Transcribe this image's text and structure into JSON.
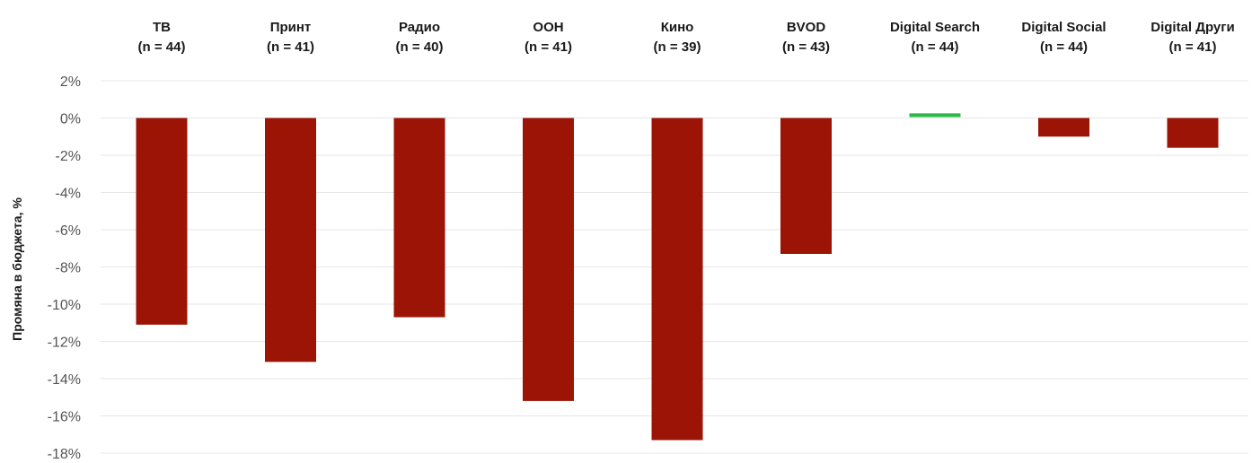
{
  "chart_data": {
    "type": "bar",
    "categories": [
      {
        "name": "ТВ",
        "n": "(n = 44)"
      },
      {
        "name": "Принт",
        "n": "(n = 41)"
      },
      {
        "name": "Радио",
        "n": "(n = 40)"
      },
      {
        "name": "OOH",
        "n": "(n = 41)"
      },
      {
        "name": "Кино",
        "n": "(n = 39)"
      },
      {
        "name": "BVOD",
        "n": "(n = 43)"
      },
      {
        "name": "Digital Search",
        "n": "(n = 44)"
      },
      {
        "name": "Digital Social",
        "n": "(n = 44)"
      },
      {
        "name": "Digital Други",
        "n": "(n = 41)"
      }
    ],
    "values": [
      -11.1,
      -13.1,
      -10.7,
      -15.2,
      -17.3,
      -7.3,
      0.2,
      -1.0,
      -1.6
    ],
    "ylabel": "Промяна в бюджета, %",
    "ylim": [
      -18,
      2
    ],
    "yticks": [
      "2%",
      "0%",
      "-2%",
      "-4%",
      "-6%",
      "-8%",
      "-10%",
      "-12%",
      "-14%",
      "-16%",
      "-18%"
    ],
    "ytick_values": [
      2,
      0,
      -2,
      -4,
      -6,
      -8,
      -10,
      -12,
      -14,
      -16,
      -18
    ],
    "grid": true,
    "legend": "none",
    "colors": {
      "negative": "#9b1406",
      "positive": "#2db84a",
      "grid": "#e6e6e6",
      "tick_text": "#555555",
      "label_text": "#1a1a1a"
    }
  }
}
